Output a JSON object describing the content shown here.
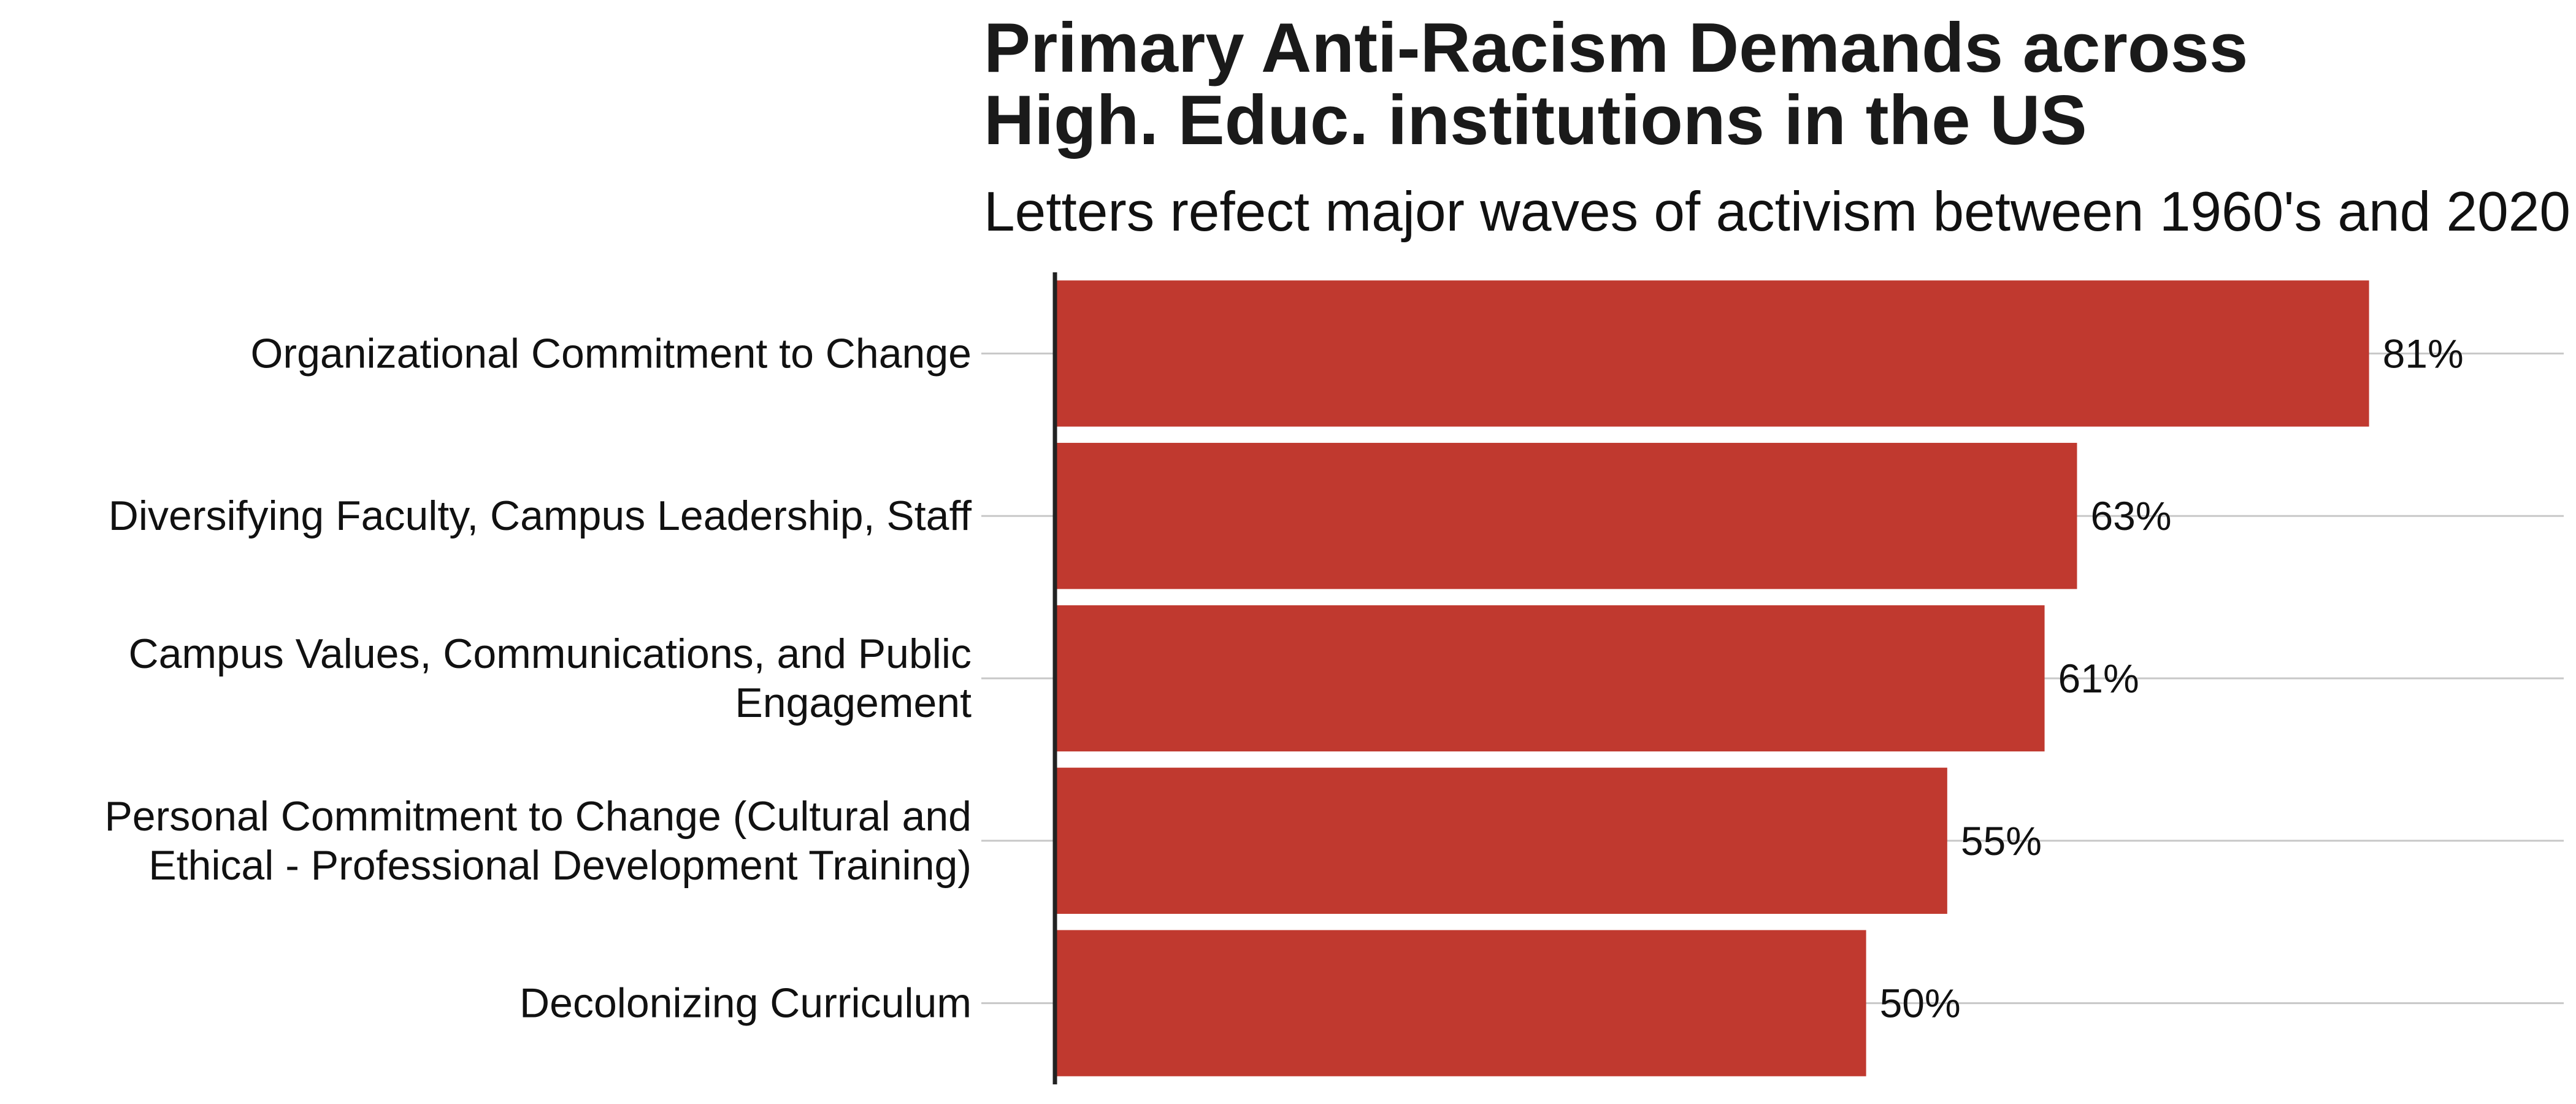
{
  "chart_data": {
    "type": "bar",
    "orientation": "horizontal",
    "title_lines": [
      "Primary Anti-Racism Demands across",
      "High. Educ. institutions in the US"
    ],
    "subtitle": "Letters refect major waves of activism between 1960's and 2020",
    "categories": [
      [
        "Organizational Commitment to Change"
      ],
      [
        "Diversifying Faculty, Campus Leadership, Staff"
      ],
      [
        "Campus Values, Communications, and Public",
        "Engagement"
      ],
      [
        "Personal Commitment to Change (Cultural and",
        "Ethical - Professional Development Training)"
      ],
      [
        "Decolonizing Curriculum"
      ]
    ],
    "values": [
      81,
      63,
      61,
      55,
      50
    ],
    "value_labels": [
      "81%",
      "63%",
      "61%",
      "55%",
      "50%"
    ],
    "unit": "%",
    "xlim": [
      0,
      93
    ],
    "bar_color": "#c0392f",
    "grid": "horizontal lines at each category",
    "axis_line_color": "#222222",
    "grid_color": "#c8c8c8"
  }
}
